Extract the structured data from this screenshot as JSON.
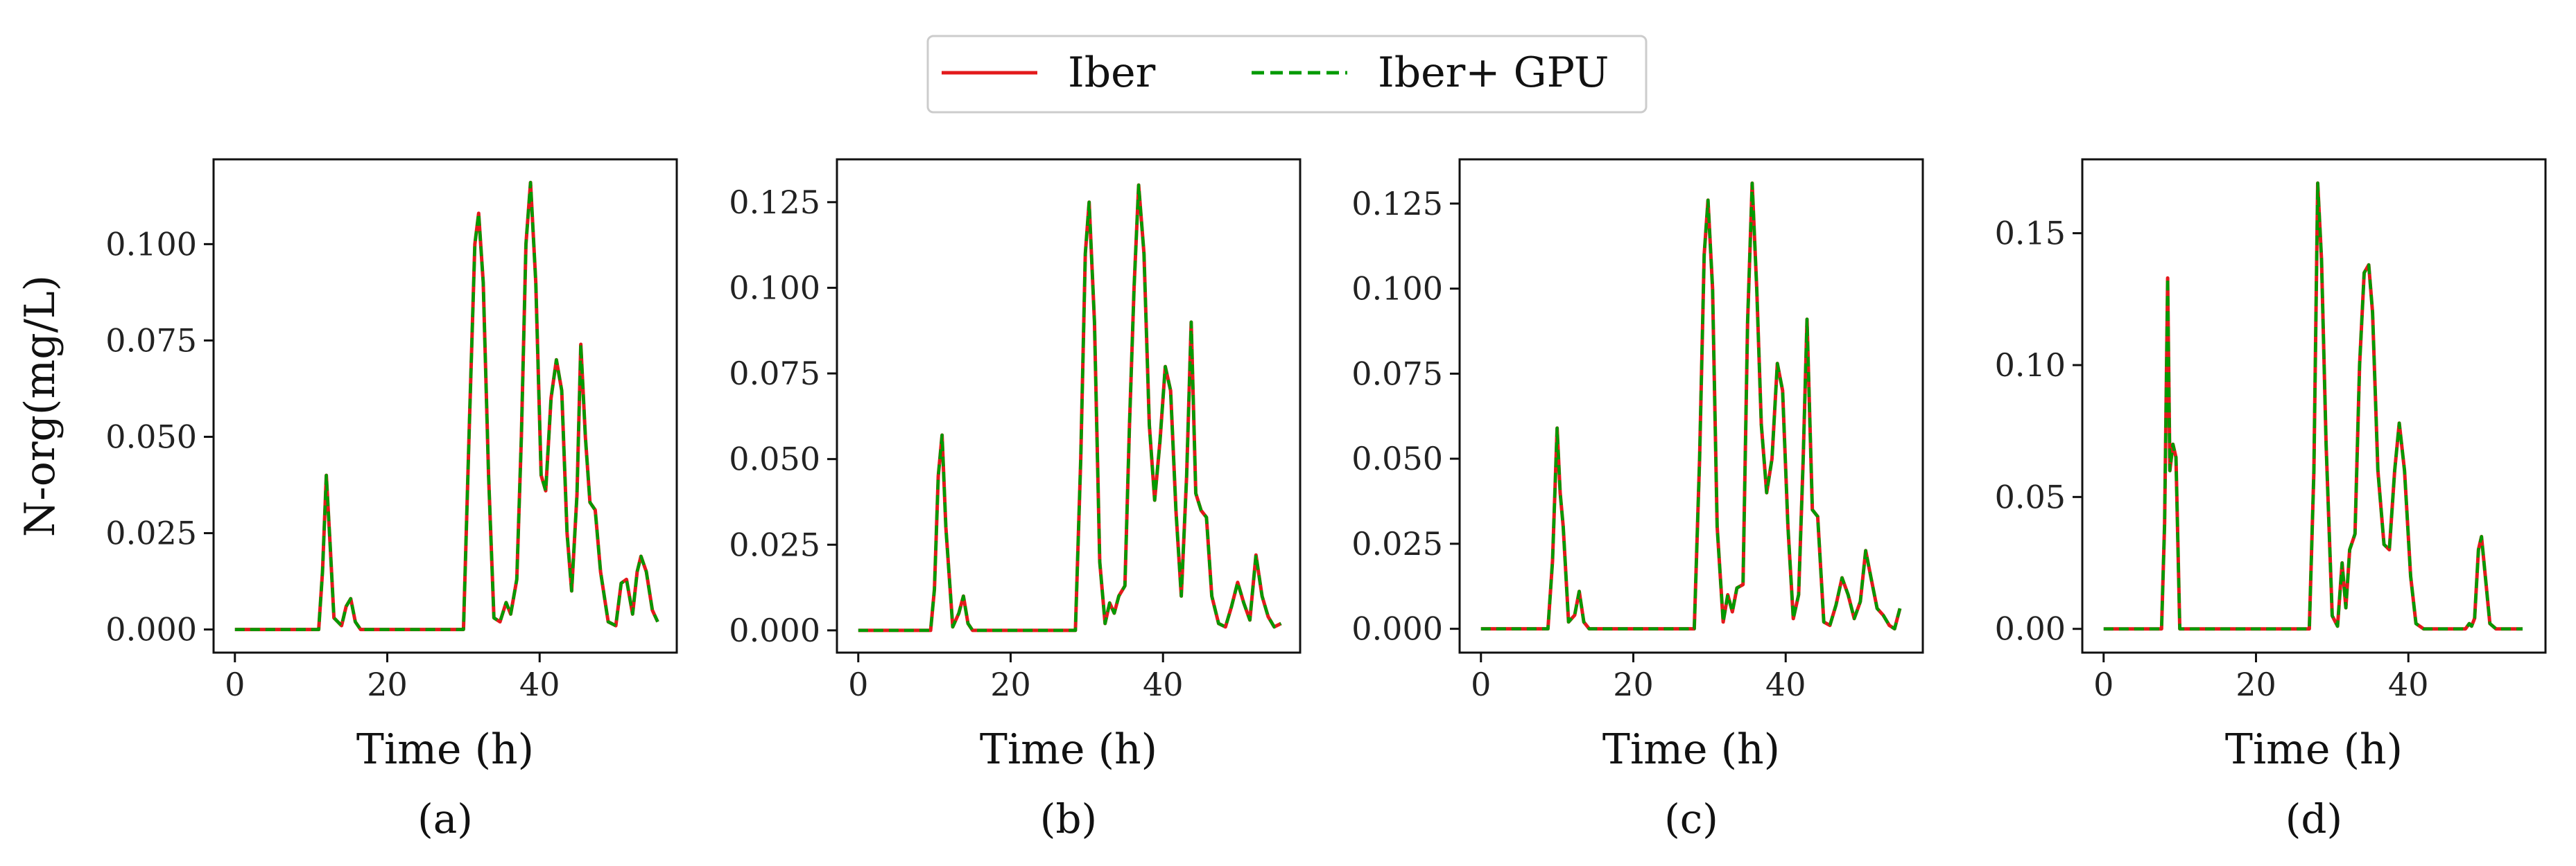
{
  "legend": {
    "entries": [
      {
        "label": "Iber",
        "color": "#e31a1c",
        "style": "solid"
      },
      {
        "label": "Iber+ GPU",
        "color": "#009a00",
        "style": "dashed"
      }
    ]
  },
  "colors": {
    "iber": "#e31a1c",
    "gpu": "#009a00",
    "axis": "#111111"
  },
  "chart_data": [
    {
      "type": "line",
      "panel": "(a)",
      "xlabel": "Time (h)",
      "ylabel": "N-org(mg/L)",
      "xlim": [
        -2.8,
        58
      ],
      "ylim": [
        -0.006,
        0.122
      ],
      "xticks": [
        0,
        20,
        40
      ],
      "yticks": [
        0.0,
        0.025,
        0.05,
        0.075,
        0.1
      ],
      "ytick_labels": [
        "0.000",
        "0.025",
        "0.050",
        "0.075",
        "0.100"
      ],
      "x": [
        0,
        11,
        11.5,
        12,
        12.5,
        13,
        14,
        14.6,
        15.2,
        15.8,
        16.5,
        30,
        30.8,
        31.5,
        32,
        32.6,
        33.3,
        34,
        34.8,
        35.6,
        36.2,
        37,
        37.6,
        38.2,
        38.8,
        39.5,
        40.2,
        40.8,
        41.5,
        42.2,
        42.9,
        43.6,
        44.2,
        44.9,
        45.4,
        46,
        46.6,
        47.3,
        48,
        49,
        50,
        50.7,
        51.4,
        52.2,
        52.8,
        53.3,
        54,
        54.8,
        55.5
      ],
      "series": [
        {
          "name": "Iber",
          "values": [
            0,
            0,
            0.015,
            0.04,
            0.022,
            0.003,
            0.001,
            0.006,
            0.008,
            0.002,
            0,
            0,
            0.055,
            0.1,
            0.108,
            0.09,
            0.04,
            0.003,
            0.002,
            0.007,
            0.004,
            0.013,
            0.05,
            0.1,
            0.116,
            0.09,
            0.04,
            0.036,
            0.06,
            0.07,
            0.062,
            0.025,
            0.01,
            0.035,
            0.074,
            0.05,
            0.033,
            0.031,
            0.015,
            0.002,
            0.001,
            0.012,
            0.013,
            0.004,
            0.015,
            0.019,
            0.015,
            0.005,
            0.002
          ]
        },
        {
          "name": "Iber+ GPU",
          "values": [
            0,
            0,
            0.015,
            0.04,
            0.022,
            0.003,
            0.001,
            0.006,
            0.008,
            0.002,
            0,
            0,
            0.055,
            0.1,
            0.108,
            0.09,
            0.04,
            0.003,
            0.002,
            0.007,
            0.004,
            0.013,
            0.05,
            0.1,
            0.116,
            0.09,
            0.04,
            0.036,
            0.06,
            0.07,
            0.062,
            0.025,
            0.01,
            0.035,
            0.074,
            0.05,
            0.033,
            0.031,
            0.015,
            0.002,
            0.001,
            0.012,
            0.013,
            0.004,
            0.015,
            0.019,
            0.015,
            0.005,
            0.002
          ]
        }
      ]
    },
    {
      "type": "line",
      "panel": "(b)",
      "xlabel": "Time (h)",
      "ylabel": "",
      "xlim": [
        -2.8,
        58
      ],
      "ylim": [
        -0.0065,
        0.1375
      ],
      "xticks": [
        0,
        20,
        40
      ],
      "yticks": [
        0.0,
        0.025,
        0.05,
        0.075,
        0.1,
        0.125
      ],
      "ytick_labels": [
        "0.000",
        "0.025",
        "0.050",
        "0.075",
        "0.100",
        "0.125"
      ],
      "x": [
        0,
        9.5,
        10,
        10.5,
        11,
        11.5,
        12.4,
        13.2,
        13.8,
        14.4,
        15,
        28.5,
        29.2,
        29.8,
        30.3,
        31,
        31.7,
        32.4,
        33,
        33.6,
        34.2,
        35,
        35.6,
        36.2,
        36.8,
        37.5,
        38.2,
        38.9,
        39.6,
        40.3,
        41,
        41.7,
        42.4,
        43.1,
        43.7,
        44.3,
        45,
        45.7,
        46.4,
        47.3,
        48.2,
        49,
        49.8,
        50.6,
        51.4,
        52.2,
        53,
        53.8,
        54.6,
        55.5
      ],
      "series": [
        {
          "name": "Iber",
          "values": [
            0,
            0,
            0.012,
            0.045,
            0.057,
            0.03,
            0.001,
            0.005,
            0.01,
            0.002,
            0,
            0,
            0.05,
            0.11,
            0.125,
            0.09,
            0.02,
            0.002,
            0.008,
            0.005,
            0.01,
            0.013,
            0.06,
            0.1,
            0.13,
            0.11,
            0.06,
            0.038,
            0.055,
            0.077,
            0.07,
            0.035,
            0.01,
            0.045,
            0.09,
            0.04,
            0.035,
            0.033,
            0.01,
            0.002,
            0.001,
            0.007,
            0.014,
            0.008,
            0.003,
            0.022,
            0.01,
            0.004,
            0.001,
            0.002
          ]
        },
        {
          "name": "Iber+ GPU",
          "values": [
            0,
            0,
            0.012,
            0.045,
            0.057,
            0.03,
            0.001,
            0.005,
            0.01,
            0.002,
            0,
            0,
            0.05,
            0.11,
            0.125,
            0.09,
            0.02,
            0.002,
            0.008,
            0.005,
            0.01,
            0.013,
            0.06,
            0.1,
            0.13,
            0.11,
            0.06,
            0.038,
            0.055,
            0.077,
            0.07,
            0.035,
            0.01,
            0.045,
            0.09,
            0.04,
            0.035,
            0.033,
            0.01,
            0.002,
            0.001,
            0.007,
            0.014,
            0.008,
            0.003,
            0.022,
            0.01,
            0.004,
            0.001,
            0.002
          ]
        }
      ]
    },
    {
      "type": "line",
      "panel": "(c)",
      "xlabel": "Time (h)",
      "ylabel": "",
      "xlim": [
        -2.8,
        58
      ],
      "ylim": [
        -0.007,
        0.138
      ],
      "xticks": [
        0,
        20,
        40
      ],
      "yticks": [
        0.0,
        0.025,
        0.05,
        0.075,
        0.1,
        0.125
      ],
      "ytick_labels": [
        "0.000",
        "0.025",
        "0.050",
        "0.075",
        "0.100",
        "0.125"
      ],
      "x": [
        0,
        8.8,
        9.4,
        10,
        10.4,
        10.8,
        11.5,
        12.3,
        12.9,
        13.5,
        14.2,
        28,
        28.7,
        29.3,
        29.8,
        30.4,
        31,
        31.8,
        32.4,
        33,
        33.6,
        34.4,
        35,
        35.6,
        36.2,
        36.8,
        37.5,
        38.2,
        38.9,
        39.6,
        40.3,
        41,
        41.7,
        42.3,
        42.8,
        43.5,
        44.2,
        45,
        45.8,
        46.6,
        47.4,
        48.2,
        49,
        49.8,
        50.5,
        51.2,
        52,
        52.8,
        53.6,
        54.3,
        55
      ],
      "series": [
        {
          "name": "Iber",
          "values": [
            0,
            0,
            0.02,
            0.059,
            0.04,
            0.03,
            0.002,
            0.004,
            0.011,
            0.002,
            0,
            0,
            0.05,
            0.11,
            0.126,
            0.1,
            0.03,
            0.002,
            0.01,
            0.005,
            0.012,
            0.013,
            0.09,
            0.131,
            0.1,
            0.06,
            0.04,
            0.05,
            0.078,
            0.07,
            0.03,
            0.003,
            0.01,
            0.05,
            0.091,
            0.035,
            0.033,
            0.002,
            0.001,
            0.007,
            0.015,
            0.01,
            0.003,
            0.008,
            0.023,
            0.015,
            0.006,
            0.004,
            0.001,
            0.0,
            0.006
          ]
        },
        {
          "name": "Iber+ GPU",
          "values": [
            0,
            0,
            0.02,
            0.059,
            0.04,
            0.03,
            0.002,
            0.004,
            0.011,
            0.002,
            0,
            0,
            0.05,
            0.11,
            0.126,
            0.1,
            0.03,
            0.002,
            0.01,
            0.005,
            0.012,
            0.013,
            0.09,
            0.131,
            0.1,
            0.06,
            0.04,
            0.05,
            0.078,
            0.07,
            0.03,
            0.003,
            0.01,
            0.05,
            0.091,
            0.035,
            0.033,
            0.002,
            0.001,
            0.007,
            0.015,
            0.01,
            0.003,
            0.008,
            0.023,
            0.015,
            0.006,
            0.004,
            0.001,
            0.0,
            0.006
          ]
        }
      ]
    },
    {
      "type": "line",
      "panel": "(d)",
      "xlabel": "Time (h)",
      "ylabel": "",
      "xlim": [
        -2.8,
        58
      ],
      "ylim": [
        -0.009,
        0.178
      ],
      "xticks": [
        0,
        20,
        40
      ],
      "yticks": [
        0.0,
        0.05,
        0.1,
        0.15
      ],
      "ytick_labels": [
        "0.00",
        "0.05",
        "0.10",
        "0.15"
      ],
      "x": [
        0,
        7.6,
        8,
        8.4,
        8.7,
        9.1,
        9.5,
        10,
        27,
        27.6,
        28.1,
        28.6,
        29.2,
        30,
        30.7,
        31.3,
        31.8,
        32.3,
        33,
        33.6,
        34.2,
        34.8,
        35.3,
        36,
        36.8,
        37.5,
        38.2,
        38.8,
        39.5,
        40.3,
        41,
        42,
        47.5,
        48,
        48.3,
        48.7,
        49.2,
        49.6,
        50.1,
        50.7,
        51.5,
        55
      ],
      "series": [
        {
          "name": "Iber",
          "values": [
            0,
            0,
            0.04,
            0.133,
            0.06,
            0.07,
            0.065,
            0,
            0,
            0.06,
            0.169,
            0.14,
            0.07,
            0.005,
            0.001,
            0.025,
            0.008,
            0.03,
            0.036,
            0.1,
            0.135,
            0.138,
            0.12,
            0.06,
            0.032,
            0.03,
            0.06,
            0.078,
            0.06,
            0.02,
            0.002,
            0,
            0,
            0.002,
            0.001,
            0.004,
            0.03,
            0.035,
            0.02,
            0.002,
            0,
            0
          ]
        },
        {
          "name": "Iber+ GPU",
          "values": [
            0,
            0,
            0.04,
            0.133,
            0.06,
            0.07,
            0.065,
            0,
            0,
            0.06,
            0.169,
            0.14,
            0.07,
            0.005,
            0.001,
            0.025,
            0.008,
            0.03,
            0.036,
            0.1,
            0.135,
            0.138,
            0.12,
            0.06,
            0.032,
            0.03,
            0.06,
            0.078,
            0.06,
            0.02,
            0.002,
            0,
            0,
            0.002,
            0.001,
            0.004,
            0.03,
            0.035,
            0.02,
            0.002,
            0,
            0
          ]
        }
      ]
    }
  ]
}
